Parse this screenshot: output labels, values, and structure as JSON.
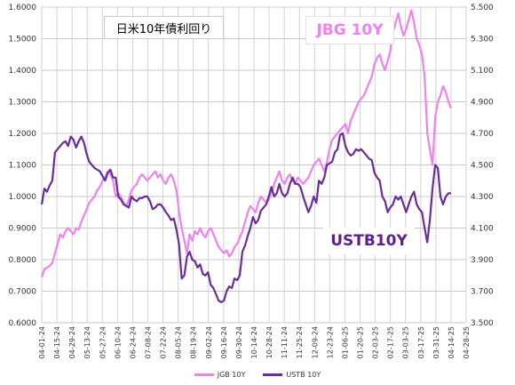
{
  "chart_data": {
    "type": "line",
    "title": "日米10年債利回り",
    "x_ticks": [
      "04-01-24",
      "04-15-24",
      "04-29-24",
      "05-13-24",
      "05-27-24",
      "06-10-24",
      "06-24-24",
      "07-08-24",
      "07-22-24",
      "08-05-24",
      "08-19-24",
      "09-02-24",
      "09-16-24",
      "09-30-24",
      "10-14-24",
      "10-28-24",
      "11-11-24",
      "11-25-24",
      "12-09-24",
      "12-23-24",
      "01-06-25",
      "01-20-25",
      "02-03-25",
      "02-17-25",
      "03-03-25",
      "03-17-25",
      "03-31-25",
      "04-14-25",
      "04-28-25"
    ],
    "y_left": {
      "min": 0.6,
      "max": 1.6,
      "ticks": [
        "0.6000",
        "0.7000",
        "0.8000",
        "0.9000",
        "1.0000",
        "1.1000",
        "1.2000",
        "1.3000",
        "1.4000",
        "1.5000",
        "1.6000"
      ]
    },
    "y_right": {
      "min": 3.5,
      "max": 5.5,
      "ticks": [
        "3.500",
        "3.700",
        "3.900",
        "4.100",
        "4.300",
        "4.500",
        "4.700",
        "4.900",
        "5.100",
        "5.300",
        "5.500"
      ]
    },
    "grid": true,
    "legend_position": "bottom",
    "series": [
      {
        "name": "JGB 10Y",
        "axis": "left",
        "color": "#ee82ee",
        "points": [
          [
            0,
            0.745
          ],
          [
            1,
            0.77
          ],
          [
            2,
            0.775
          ],
          [
            3,
            0.78
          ],
          [
            4,
            0.79
          ],
          [
            5,
            0.82
          ],
          [
            6,
            0.85
          ],
          [
            7,
            0.88
          ],
          [
            8,
            0.87
          ],
          [
            9,
            0.89
          ],
          [
            10,
            0.9
          ],
          [
            11,
            0.89
          ],
          [
            12,
            0.88
          ],
          [
            13,
            0.9
          ],
          [
            14,
            0.895
          ],
          [
            15,
            0.92
          ],
          [
            16,
            0.94
          ],
          [
            17,
            0.96
          ],
          [
            18,
            0.98
          ],
          [
            19,
            0.99
          ],
          [
            20,
            1.0
          ],
          [
            21,
            1.02
          ],
          [
            22,
            1.03
          ],
          [
            23,
            1.05
          ],
          [
            24,
            1.06
          ],
          [
            25,
            1.08
          ],
          [
            26,
            1.07
          ],
          [
            27,
            1.05
          ],
          [
            28,
            1.0
          ],
          [
            29,
            1.01
          ],
          [
            30,
            1.0
          ],
          [
            31,
            0.98
          ],
          [
            32,
            0.97
          ],
          [
            33,
            0.99
          ],
          [
            34,
            1.02
          ],
          [
            35,
            1.03
          ],
          [
            36,
            1.04
          ],
          [
            37,
            1.06
          ],
          [
            38,
            1.07
          ],
          [
            39,
            1.06
          ],
          [
            40,
            1.05
          ],
          [
            41,
            1.06
          ],
          [
            42,
            1.07
          ],
          [
            43,
            1.08
          ],
          [
            44,
            1.06
          ],
          [
            45,
            1.07
          ],
          [
            46,
            1.05
          ],
          [
            47,
            1.04
          ],
          [
            48,
            1.06
          ],
          [
            49,
            1.07
          ],
          [
            50,
            1.05
          ],
          [
            51,
            1.02
          ],
          [
            52,
            0.95
          ],
          [
            53,
            0.9
          ],
          [
            54,
            0.86
          ],
          [
            55,
            0.82
          ],
          [
            56,
            0.88
          ],
          [
            57,
            0.86
          ],
          [
            58,
            0.89
          ],
          [
            59,
            0.88
          ],
          [
            60,
            0.9
          ],
          [
            61,
            0.88
          ],
          [
            62,
            0.87
          ],
          [
            63,
            0.89
          ],
          [
            64,
            0.9
          ],
          [
            65,
            0.88
          ],
          [
            66,
            0.86
          ],
          [
            67,
            0.84
          ],
          [
            68,
            0.83
          ],
          [
            69,
            0.82
          ],
          [
            70,
            0.83
          ],
          [
            71,
            0.81
          ],
          [
            72,
            0.82
          ],
          [
            73,
            0.84
          ],
          [
            74,
            0.85
          ],
          [
            75,
            0.87
          ],
          [
            76,
            0.89
          ],
          [
            77,
            0.92
          ],
          [
            78,
            0.95
          ],
          [
            79,
            0.97
          ],
          [
            80,
            0.96
          ],
          [
            81,
            0.95
          ],
          [
            82,
            0.98
          ],
          [
            83,
            1.0
          ],
          [
            84,
            0.99
          ],
          [
            85,
            0.98
          ],
          [
            86,
            0.99
          ],
          [
            87,
            1.01
          ],
          [
            88,
            1.04
          ],
          [
            89,
            1.06
          ],
          [
            90,
            1.08
          ],
          [
            91,
            1.05
          ],
          [
            92,
            1.04
          ],
          [
            93,
            1.06
          ],
          [
            94,
            1.07
          ],
          [
            95,
            1.05
          ],
          [
            96,
            1.04
          ],
          [
            97,
            1.06
          ],
          [
            98,
            1.05
          ],
          [
            99,
            1.04
          ],
          [
            100,
            1.05
          ],
          [
            101,
            1.06
          ],
          [
            102,
            1.08
          ],
          [
            103,
            1.1
          ],
          [
            104,
            1.11
          ],
          [
            105,
            1.12
          ],
          [
            106,
            1.1
          ],
          [
            107,
            1.08
          ],
          [
            108,
            1.11
          ],
          [
            109,
            1.15
          ],
          [
            110,
            1.18
          ],
          [
            111,
            1.19
          ],
          [
            112,
            1.2
          ],
          [
            113,
            1.21
          ],
          [
            114,
            1.22
          ],
          [
            115,
            1.23
          ],
          [
            116,
            1.2
          ],
          [
            117,
            1.24
          ],
          [
            118,
            1.26
          ],
          [
            119,
            1.28
          ],
          [
            120,
            1.3
          ],
          [
            121,
            1.31
          ],
          [
            122,
            1.32
          ],
          [
            123,
            1.34
          ],
          [
            124,
            1.36
          ],
          [
            125,
            1.38
          ],
          [
            126,
            1.42
          ],
          [
            127,
            1.44
          ],
          [
            128,
            1.45
          ],
          [
            129,
            1.42
          ],
          [
            130,
            1.4
          ],
          [
            131,
            1.43
          ],
          [
            132,
            1.46
          ],
          [
            133,
            1.52
          ],
          [
            134,
            1.55
          ],
          [
            135,
            1.58
          ],
          [
            136,
            1.54
          ],
          [
            137,
            1.51
          ],
          [
            138,
            1.53
          ],
          [
            139,
            1.56
          ],
          [
            140,
            1.59
          ],
          [
            141,
            1.55
          ],
          [
            142,
            1.5
          ],
          [
            143,
            1.48
          ],
          [
            144,
            1.45
          ],
          [
            145,
            1.38
          ],
          [
            146,
            1.2
          ],
          [
            147,
            1.15
          ],
          [
            148,
            1.1
          ],
          [
            149,
            1.25
          ],
          [
            150,
            1.3
          ],
          [
            151,
            1.32
          ],
          [
            152,
            1.35
          ],
          [
            153,
            1.33
          ],
          [
            154,
            1.3
          ],
          [
            155,
            1.28
          ]
        ]
      },
      {
        "name": "USTB 10Y",
        "axis": "right",
        "color": "#6a2c9a",
        "points": [
          [
            0,
            4.25
          ],
          [
            1,
            4.35
          ],
          [
            2,
            4.33
          ],
          [
            3,
            4.37
          ],
          [
            4,
            4.4
          ],
          [
            5,
            4.58
          ],
          [
            6,
            4.6
          ],
          [
            7,
            4.62
          ],
          [
            8,
            4.64
          ],
          [
            9,
            4.65
          ],
          [
            10,
            4.62
          ],
          [
            11,
            4.68
          ],
          [
            12,
            4.66
          ],
          [
            13,
            4.61
          ],
          [
            14,
            4.65
          ],
          [
            15,
            4.68
          ],
          [
            16,
            4.64
          ],
          [
            17,
            4.57
          ],
          [
            18,
            4.52
          ],
          [
            19,
            4.5
          ],
          [
            20,
            4.48
          ],
          [
            21,
            4.47
          ],
          [
            22,
            4.46
          ],
          [
            23,
            4.43
          ],
          [
            24,
            4.4
          ],
          [
            25,
            4.45
          ],
          [
            26,
            4.47
          ],
          [
            27,
            4.42
          ],
          [
            28,
            4.42
          ],
          [
            29,
            4.3
          ],
          [
            30,
            4.28
          ],
          [
            31,
            4.25
          ],
          [
            32,
            4.24
          ],
          [
            33,
            4.23
          ],
          [
            34,
            4.3
          ],
          [
            35,
            4.28
          ],
          [
            36,
            4.27
          ],
          [
            37,
            4.29
          ],
          [
            38,
            4.29
          ],
          [
            39,
            4.3
          ],
          [
            40,
            4.3
          ],
          [
            41,
            4.27
          ],
          [
            42,
            4.22
          ],
          [
            43,
            4.23
          ],
          [
            44,
            4.25
          ],
          [
            45,
            4.25
          ],
          [
            46,
            4.23
          ],
          [
            47,
            4.2
          ],
          [
            48,
            4.18
          ],
          [
            49,
            4.15
          ],
          [
            50,
            4.16
          ],
          [
            51,
            4.09
          ],
          [
            52,
            4.0
          ],
          [
            53,
            3.78
          ],
          [
            54,
            3.8
          ],
          [
            55,
            3.92
          ],
          [
            56,
            3.95
          ],
          [
            57,
            3.9
          ],
          [
            58,
            3.89
          ],
          [
            59,
            3.85
          ],
          [
            60,
            3.87
          ],
          [
            61,
            3.81
          ],
          [
            62,
            3.8
          ],
          [
            63,
            3.82
          ],
          [
            64,
            3.74
          ],
          [
            65,
            3.72
          ],
          [
            66,
            3.68
          ],
          [
            67,
            3.64
          ],
          [
            68,
            3.63
          ],
          [
            69,
            3.64
          ],
          [
            70,
            3.7
          ],
          [
            71,
            3.73
          ],
          [
            72,
            3.72
          ],
          [
            73,
            3.78
          ],
          [
            74,
            3.77
          ],
          [
            75,
            3.8
          ],
          [
            76,
            3.95
          ],
          [
            77,
            3.99
          ],
          [
            78,
            4.05
          ],
          [
            79,
            4.1
          ],
          [
            80,
            4.17
          ],
          [
            81,
            4.13
          ],
          [
            82,
            4.15
          ],
          [
            83,
            4.21
          ],
          [
            84,
            4.23
          ],
          [
            85,
            4.25
          ],
          [
            86,
            4.3
          ],
          [
            87,
            4.36
          ],
          [
            88,
            4.3
          ],
          [
            89,
            4.32
          ],
          [
            90,
            4.38
          ],
          [
            91,
            4.32
          ],
          [
            92,
            4.3
          ],
          [
            93,
            4.32
          ],
          [
            94,
            4.38
          ],
          [
            95,
            4.42
          ],
          [
            96,
            4.38
          ],
          [
            97,
            4.38
          ],
          [
            98,
            4.36
          ],
          [
            99,
            4.3
          ],
          [
            100,
            4.25
          ],
          [
            101,
            4.2
          ],
          [
            102,
            4.24
          ],
          [
            103,
            4.3
          ],
          [
            104,
            4.26
          ],
          [
            105,
            4.4
          ],
          [
            106,
            4.38
          ],
          [
            107,
            4.42
          ],
          [
            108,
            4.5
          ],
          [
            109,
            4.51
          ],
          [
            110,
            4.52
          ],
          [
            111,
            4.58
          ],
          [
            112,
            4.6
          ],
          [
            113,
            4.69
          ],
          [
            114,
            4.7
          ],
          [
            115,
            4.62
          ],
          [
            116,
            4.58
          ],
          [
            117,
            4.56
          ],
          [
            118,
            4.57
          ],
          [
            119,
            4.6
          ],
          [
            120,
            4.59
          ],
          [
            121,
            4.6
          ],
          [
            122,
            4.58
          ],
          [
            123,
            4.56
          ],
          [
            124,
            4.54
          ],
          [
            125,
            4.53
          ],
          [
            126,
            4.45
          ],
          [
            127,
            4.42
          ],
          [
            128,
            4.4
          ],
          [
            129,
            4.3
          ],
          [
            130,
            4.27
          ],
          [
            131,
            4.2
          ],
          [
            132,
            4.23
          ],
          [
            133,
            4.25
          ],
          [
            134,
            4.3
          ],
          [
            135,
            4.28
          ],
          [
            136,
            4.3
          ],
          [
            137,
            4.25
          ],
          [
            138,
            4.2
          ],
          [
            139,
            4.25
          ],
          [
            140,
            4.3
          ],
          [
            141,
            4.33
          ],
          [
            142,
            4.25
          ],
          [
            143,
            4.22
          ],
          [
            144,
            4.2
          ],
          [
            145,
            4.1
          ],
          [
            146,
            4.01
          ],
          [
            147,
            4.15
          ],
          [
            148,
            4.35
          ],
          [
            149,
            4.5
          ],
          [
            150,
            4.48
          ],
          [
            151,
            4.3
          ],
          [
            152,
            4.25
          ],
          [
            153,
            4.3
          ],
          [
            154,
            4.32
          ],
          [
            155,
            4.32
          ]
        ]
      }
    ],
    "annotations": [
      {
        "text": "JBG 10Y",
        "color": "#ee82ee"
      },
      {
        "text": "USTB10Y",
        "color": "#5b1f91"
      }
    ]
  }
}
